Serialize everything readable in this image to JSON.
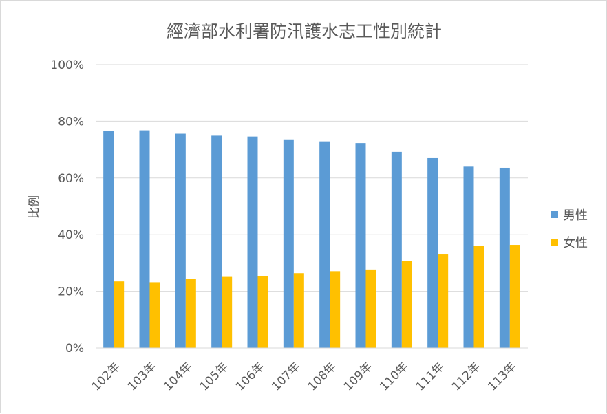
{
  "chart_data": {
    "type": "bar",
    "title": "經濟部水利署防汛護水志工性別統計",
    "ylabel": "比例",
    "xlabel": "",
    "categories": [
      "102年",
      "103年",
      "104年",
      "105年",
      "106年",
      "107年",
      "108年",
      "109年",
      "110年",
      "111年",
      "112年",
      "113年"
    ],
    "series": [
      {
        "name": "男性",
        "color": "#5b9bd5",
        "values": [
          76.5,
          76.8,
          75.6,
          74.9,
          74.6,
          73.6,
          72.9,
          72.3,
          69.2,
          67.0,
          64.0,
          63.6
        ]
      },
      {
        "name": "女性",
        "color": "#ffc000",
        "values": [
          23.5,
          23.2,
          24.4,
          25.1,
          25.4,
          26.4,
          27.1,
          27.7,
          30.8,
          33.0,
          36.0,
          36.4
        ]
      }
    ],
    "ylim": [
      0,
      100
    ],
    "yticks": [
      "0%",
      "20%",
      "40%",
      "60%",
      "80%",
      "100%"
    ],
    "grid": true,
    "legend_position": "right"
  }
}
